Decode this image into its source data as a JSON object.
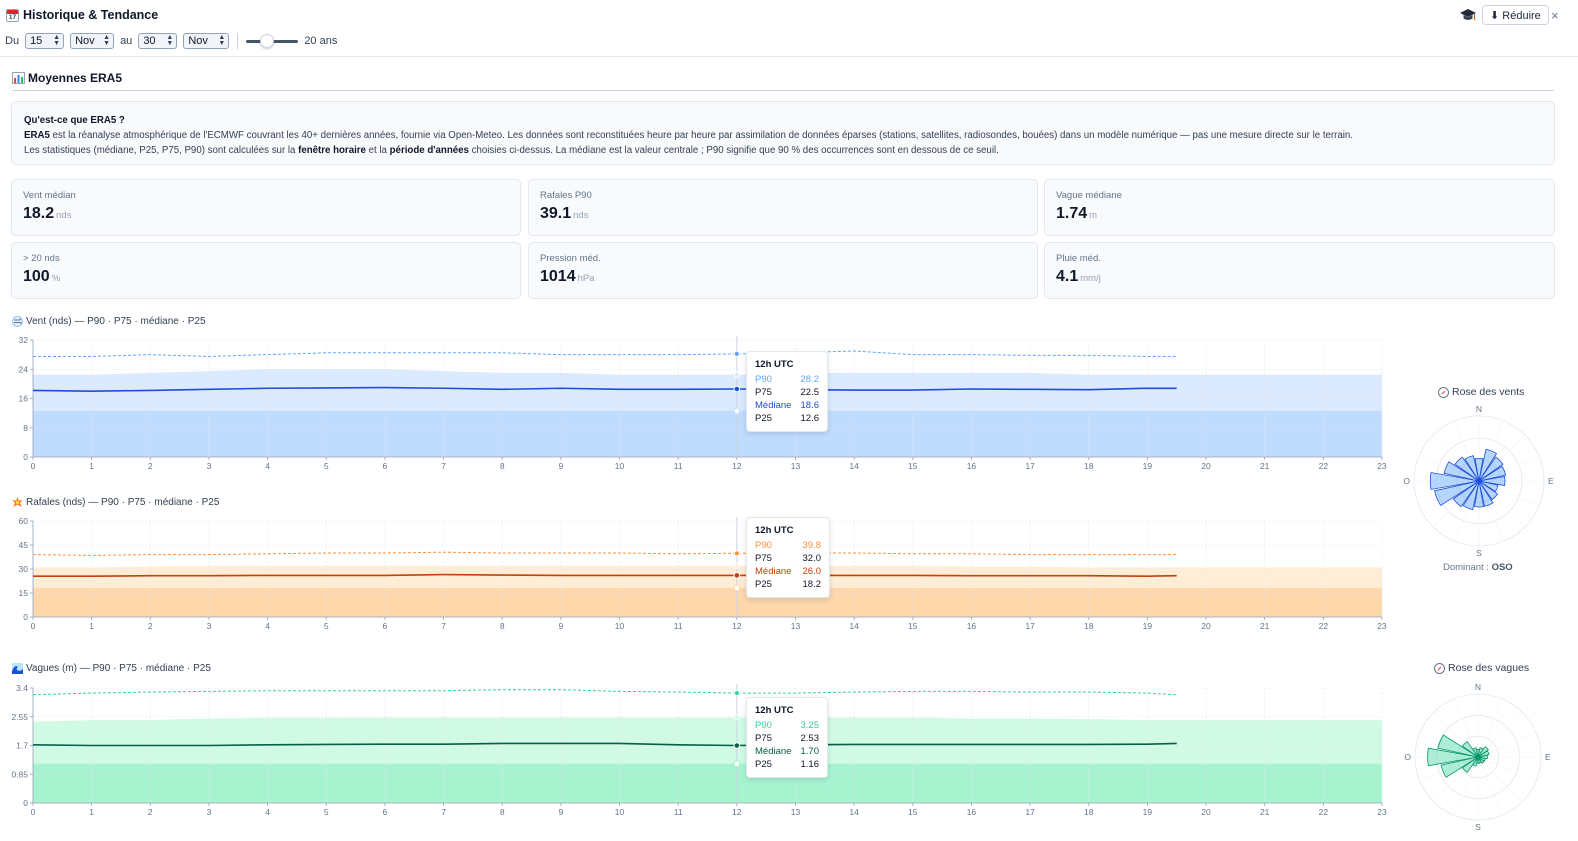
{
  "header": {
    "title": "Historique & Tendance",
    "reduce_label": "⬇ Réduire",
    "close_label": "×"
  },
  "filters": {
    "from_label": "Du",
    "from_day": "15",
    "from_month": "Nov",
    "to_label": "au",
    "to_day": "30",
    "to_month": "Nov",
    "years_value": 20,
    "years_label": "20 ans"
  },
  "section": {
    "title": "Moyennes ERA5"
  },
  "info": {
    "question": "Qu'est-ce que ERA5 ?",
    "line1_bold": "ERA5",
    "line1_rest": " est la réanalyse atmosphérique de l'ECMWF couvrant les 40+ dernières années, fournie via Open-Meteo. Les données sont reconstituées heure par heure par assimilation de données éparses (stations, satellites, radiosondes, bouées) dans un modèle numérique — pas une mesure directe sur le terrain.",
    "line2_a": "Les statistiques (médiane, P25, P75, P90) sont calculées sur la ",
    "line2_b1": "fenêtre horaire",
    "line2_c": " et la ",
    "line2_b2": "période d'années",
    "line2_d": " choisies ci-dessus. La médiane est la valeur centrale ; P90 signifie que 90 % des occurrences sont en dessous de ce seuil."
  },
  "stats": [
    {
      "label": "Vent médian",
      "value": "18.2",
      "unit": "nds"
    },
    {
      "label": "Rafales P90",
      "value": "39.1",
      "unit": "nds"
    },
    {
      "label": "Vague médiane",
      "value": "1.74",
      "unit": "m"
    },
    {
      "label": "> 20 nds",
      "value": "100",
      "unit": "%"
    },
    {
      "label": "Pression méd.",
      "value": "1014",
      "unit": "hPa"
    },
    {
      "label": "Pluie méd.",
      "value": "4.1",
      "unit": "mm/j"
    }
  ],
  "chart_titles": {
    "wind": "Vent (nds) — P90 · P75 · médiane · P25",
    "gust": "Rafales (nds) — P90 · P75 · médiane · P25",
    "wave": "Vagues (m) — P90 · P75 · médiane · P25"
  },
  "tooltips": {
    "wind": {
      "header": "12h UTC",
      "rows": [
        {
          "k": "P90",
          "v": "28.2"
        },
        {
          "k": "P75",
          "v": "22.5"
        },
        {
          "k": "Médiane",
          "v": "18.6"
        },
        {
          "k": "P25",
          "v": "12.6"
        }
      ]
    },
    "gust": {
      "header": "12h UTC",
      "rows": [
        {
          "k": "P90",
          "v": "39.8"
        },
        {
          "k": "P75",
          "v": "32.0"
        },
        {
          "k": "Médiane",
          "v": "26.0"
        },
        {
          "k": "P25",
          "v": "18.2"
        }
      ]
    },
    "wave": {
      "header": "12h UTC",
      "rows": [
        {
          "k": "P90",
          "v": "3.25"
        },
        {
          "k": "P75",
          "v": "2.53"
        },
        {
          "k": "Médiane",
          "v": "1.70"
        },
        {
          "k": "P25",
          "v": "1.16"
        }
      ]
    }
  },
  "roses": {
    "wind": {
      "title": "Rose des vents",
      "dominant_label": "Dominant : ",
      "dominant_value": "OSO",
      "n": "N",
      "e": "E",
      "s": "S",
      "w": "O"
    },
    "wave": {
      "title": "Rose des vagues",
      "n": "N",
      "e": "E",
      "s": "S",
      "w": "O"
    }
  },
  "colors": {
    "wind": {
      "p90": "#60a5fa",
      "median": "#1d4ed8",
      "band75": "#dbeafe",
      "band25": "#bfdbfe"
    },
    "gust": {
      "p90": "#fb923c",
      "median": "#c2410c",
      "band75": "#ffedd5",
      "band25": "#fed7aa"
    },
    "wave": {
      "p90": "#34d399",
      "median": "#065f46",
      "band75": "#d1fae5",
      "band25": "#a7f3d0"
    }
  },
  "chart_data": [
    {
      "type": "area",
      "title": "Vent (nds) — P90 · P75 · médiane · P25",
      "xlim": [
        0,
        23
      ],
      "ylim": [
        0,
        32
      ],
      "x_ticks": [
        0,
        1,
        2,
        3,
        4,
        5,
        6,
        7,
        8,
        9,
        10,
        11,
        12,
        13,
        14,
        15,
        16,
        17,
        18,
        19,
        20,
        21,
        22,
        23
      ],
      "y_ticks": [
        "0",
        "8",
        "16",
        "24",
        "32"
      ],
      "x": [
        0,
        1,
        2,
        3,
        4,
        5,
        6,
        7,
        8,
        9,
        10,
        11,
        12,
        13,
        14,
        15,
        16,
        17,
        18,
        19,
        19.5
      ],
      "series": [
        {
          "name": "P90",
          "values": [
            27.5,
            27.5,
            28,
            27.5,
            28,
            28.5,
            28.5,
            28.5,
            28.5,
            28,
            28,
            28,
            28.2,
            28.5,
            29,
            28,
            28,
            27.8,
            27.8,
            27.5,
            27.5
          ]
        },
        {
          "name": "P75",
          "values": [
            22.5,
            22.5,
            23,
            23.5,
            24,
            24,
            24,
            23.5,
            23,
            23,
            22.5,
            22.5,
            22.5,
            23,
            23,
            23,
            23,
            23,
            22.5,
            22.5,
            22.5
          ]
        },
        {
          "name": "médiane",
          "values": [
            18.2,
            18,
            18.2,
            18.5,
            18.8,
            18.9,
            19,
            18.8,
            18.5,
            18.8,
            18.5,
            18.5,
            18.6,
            18.4,
            18.3,
            18.3,
            18.6,
            18.5,
            18.4,
            18.8,
            18.8
          ]
        },
        {
          "name": "P25",
          "values": [
            12.6,
            12.6,
            12.6,
            12.6,
            12.6,
            12.6,
            12.6,
            12.6,
            12.6,
            12.6,
            12.6,
            12.6,
            12.6,
            12.6,
            12.6,
            12.6,
            12.6,
            12.6,
            12.6,
            12.6,
            12.6
          ]
        }
      ]
    },
    {
      "type": "area",
      "title": "Rafales (nds) — P90 · P75 · médiane · P25",
      "xlim": [
        0,
        23
      ],
      "ylim": [
        0,
        60
      ],
      "x_ticks": [
        0,
        1,
        2,
        3,
        4,
        5,
        6,
        7,
        8,
        9,
        10,
        11,
        12,
        13,
        14,
        15,
        16,
        17,
        18,
        19,
        20,
        21,
        22,
        23
      ],
      "y_ticks": [
        "0",
        "15",
        "30",
        "45",
        "60"
      ],
      "x": [
        0,
        1,
        2,
        3,
        4,
        5,
        6,
        7,
        8,
        9,
        10,
        11,
        12,
        13,
        14,
        15,
        16,
        17,
        18,
        19,
        19.5
      ],
      "series": [
        {
          "name": "P90",
          "values": [
            39,
            38.5,
            39,
            39,
            39.5,
            40,
            40,
            40.5,
            40,
            40,
            40,
            39.5,
            39.8,
            40,
            40,
            39.5,
            39.5,
            39,
            39,
            39,
            39
          ]
        },
        {
          "name": "P75",
          "values": [
            31,
            31,
            31.5,
            32,
            32,
            32,
            32,
            32,
            32,
            32,
            32,
            32,
            32,
            32,
            32,
            32,
            31.5,
            31.5,
            31,
            31,
            31
          ]
        },
        {
          "name": "médiane",
          "values": [
            25.5,
            25.5,
            25.8,
            25.8,
            26,
            26,
            26,
            26.5,
            26.2,
            26,
            26,
            26,
            26,
            26,
            26,
            26,
            25.8,
            25.8,
            25.8,
            25.5,
            25.8
          ]
        },
        {
          "name": "P25",
          "values": [
            18.2,
            18.2,
            18.2,
            18.2,
            18.2,
            18.2,
            18.2,
            18.2,
            18.2,
            18.2,
            18.2,
            18.2,
            18.2,
            18.2,
            18.2,
            18.2,
            18.2,
            18.2,
            18.2,
            18.2,
            18.2
          ]
        }
      ]
    },
    {
      "type": "area",
      "title": "Vagues (m) — P90 · P75 · médiane · P25",
      "xlim": [
        0,
        23
      ],
      "ylim": [
        0,
        3.4
      ],
      "x_ticks": [
        0,
        1,
        2,
        3,
        4,
        5,
        6,
        7,
        8,
        9,
        10,
        11,
        12,
        13,
        14,
        15,
        16,
        17,
        18,
        19,
        20,
        21,
        22,
        23
      ],
      "y_ticks": [
        "0",
        "0.85",
        "1.7",
        "2.55",
        "3.4"
      ],
      "x": [
        0,
        1,
        2,
        3,
        4,
        5,
        6,
        7,
        8,
        9,
        10,
        11,
        12,
        13,
        14,
        15,
        16,
        17,
        18,
        19,
        19.5
      ],
      "series": [
        {
          "name": "P90",
          "values": [
            3.2,
            3.25,
            3.28,
            3.3,
            3.32,
            3.32,
            3.32,
            3.32,
            3.35,
            3.35,
            3.3,
            3.28,
            3.25,
            3.25,
            3.28,
            3.3,
            3.3,
            3.28,
            3.28,
            3.25,
            3.2
          ]
        },
        {
          "name": "P75",
          "values": [
            2.4,
            2.45,
            2.45,
            2.5,
            2.52,
            2.52,
            2.53,
            2.53,
            2.53,
            2.53,
            2.53,
            2.53,
            2.53,
            2.53,
            2.53,
            2.53,
            2.5,
            2.5,
            2.48,
            2.45,
            2.45
          ]
        },
        {
          "name": "médiane",
          "values": [
            1.72,
            1.7,
            1.7,
            1.7,
            1.72,
            1.73,
            1.74,
            1.74,
            1.76,
            1.76,
            1.76,
            1.72,
            1.7,
            1.72,
            1.73,
            1.73,
            1.73,
            1.73,
            1.73,
            1.74,
            1.76
          ]
        },
        {
          "name": "P25",
          "values": [
            1.16,
            1.16,
            1.16,
            1.16,
            1.16,
            1.16,
            1.16,
            1.16,
            1.16,
            1.16,
            1.16,
            1.16,
            1.16,
            1.16,
            1.16,
            1.16,
            1.16,
            1.16,
            1.16,
            1.16,
            1.16
          ]
        }
      ]
    }
  ]
}
